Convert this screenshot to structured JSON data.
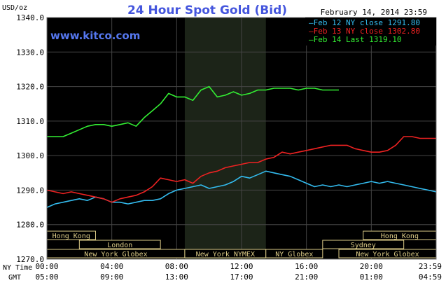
{
  "chart_data": {
    "type": "line",
    "title": "24 Hour Spot Gold (Bid)",
    "ylabel": "USD/oz",
    "source_label": "www.kitco.com",
    "date_label": "February 14, 2014 23:59",
    "ylim": [
      1270,
      1340
    ],
    "yticks": [
      "1270.0",
      "1280.0",
      "1290.0",
      "1300.0",
      "1310.0",
      "1320.0",
      "1330.0",
      "1340.0"
    ],
    "x_range": [
      0,
      24
    ],
    "ny_time_label": "NY Time",
    "gmt_label": "GMT",
    "ny_time_ticks": [
      "00:00",
      "04:00",
      "08:00",
      "12:00",
      "16:00",
      "20:00",
      "23:59"
    ],
    "gmt_ticks": [
      "05:00",
      "09:00",
      "13:00",
      "17:00",
      "21:00",
      "01:00",
      "04:59"
    ],
    "shaded_range": [
      8.5,
      13.5
    ],
    "grid": true,
    "legend": [
      "Feb 12 NY close 1291.80",
      "Feb 13 NY close 1302.80",
      "Feb 14 Last 1319.10"
    ],
    "legend_position": "top-right",
    "series": [
      {
        "color": "#33bbee",
        "x": [
          0,
          0.5,
          1,
          1.5,
          2,
          2.5,
          3,
          3.5,
          4,
          4.5,
          5,
          5.5,
          6,
          6.5,
          7,
          7.5,
          8,
          8.5,
          9,
          9.5,
          10,
          10.5,
          11,
          11.5,
          12,
          12.5,
          13,
          13.5,
          14,
          14.5,
          15,
          15.5,
          16,
          16.5,
          17,
          17.5,
          18,
          18.5,
          19,
          19.5,
          20,
          20.5,
          21,
          21.5,
          22,
          22.5,
          23,
          23.5,
          23.99
        ],
        "values": [
          1285,
          1286,
          1286.5,
          1287,
          1287.5,
          1287,
          1288,
          1287.5,
          1286.5,
          1286.5,
          1286,
          1286.5,
          1287,
          1287,
          1287.5,
          1289,
          1290,
          1290.5,
          1291,
          1291.5,
          1290.5,
          1291,
          1291.5,
          1292.5,
          1294,
          1293.5,
          1294.5,
          1295.5,
          1295,
          1294.5,
          1294,
          1293,
          1292,
          1291,
          1291.5,
          1291,
          1291.5,
          1291,
          1291.5,
          1292,
          1292.5,
          1292,
          1292.5,
          1292,
          1291.5,
          1291,
          1290.5,
          1290,
          1289.5
        ]
      },
      {
        "color": "#ee2222",
        "x": [
          0,
          0.5,
          1,
          1.5,
          2,
          2.5,
          3,
          3.5,
          4,
          4.5,
          5,
          5.5,
          6,
          6.5,
          7,
          7.5,
          8,
          8.5,
          9,
          9.5,
          10,
          10.5,
          11,
          11.5,
          12,
          12.5,
          13,
          13.5,
          14,
          14.5,
          15,
          15.5,
          16,
          16.5,
          17,
          17.5,
          18,
          18.5,
          19,
          19.5,
          20,
          20.5,
          21,
          21.5,
          22,
          22.5,
          23,
          23.5,
          23.99
        ],
        "values": [
          1290,
          1289.5,
          1289,
          1289.5,
          1289,
          1288.5,
          1288,
          1287.5,
          1286.5,
          1287.5,
          1288,
          1288.5,
          1289.5,
          1291,
          1293.5,
          1293,
          1292.5,
          1293,
          1292,
          1294,
          1295,
          1295.5,
          1296.5,
          1297,
          1297.5,
          1298,
          1298,
          1299,
          1299.5,
          1301,
          1300.5,
          1301,
          1301.5,
          1302,
          1302.5,
          1303,
          1303,
          1303,
          1302,
          1301.5,
          1301,
          1301,
          1301.5,
          1303,
          1305.5,
          1305.5,
          1305,
          1305,
          1305
        ]
      },
      {
        "color": "#33ee33",
        "x": [
          0,
          0.5,
          1,
          1.5,
          2,
          2.5,
          3,
          3.5,
          4,
          4.5,
          5,
          5.5,
          6,
          6.5,
          7,
          7.5,
          8,
          8.5,
          9,
          9.5,
          10,
          10.5,
          11,
          11.5,
          12,
          12.5,
          13,
          13.5,
          14,
          14.5,
          15,
          15.5,
          16,
          16.5,
          17,
          17.5,
          18
        ],
        "values": [
          1305.5,
          1305.5,
          1305.5,
          1306.5,
          1307.5,
          1308.5,
          1309,
          1309,
          1308.5,
          1309,
          1309.5,
          1308.5,
          1311,
          1313,
          1315,
          1318,
          1317,
          1317,
          1316,
          1319,
          1320,
          1317,
          1317.5,
          1318.5,
          1317.5,
          1318,
          1319,
          1319,
          1319.5,
          1319.5,
          1319.5,
          1319,
          1319.5,
          1319.5,
          1319,
          1319,
          1319
        ]
      }
    ],
    "sessions": [
      {
        "name": "Hong Kong",
        "row": 0,
        "start": 0,
        "end": 3
      },
      {
        "name": "London",
        "row": 1,
        "start": 2,
        "end": 7
      },
      {
        "name": "New York Globex",
        "row": 2,
        "start": 0,
        "end": 8.5
      },
      {
        "name": "New York NYMEX",
        "row": 2,
        "start": 8.5,
        "end": 13.5
      },
      {
        "name": "NY Globex",
        "row": 2,
        "start": 13.5,
        "end": 17
      },
      {
        "name": "Hong Kong",
        "row": 0,
        "start": 19.5,
        "end": 24
      },
      {
        "name": "Sydney",
        "row": 1,
        "start": 17,
        "end": 22
      },
      {
        "name": "New York Globex",
        "row": 2,
        "start": 18,
        "end": 24
      }
    ]
  }
}
